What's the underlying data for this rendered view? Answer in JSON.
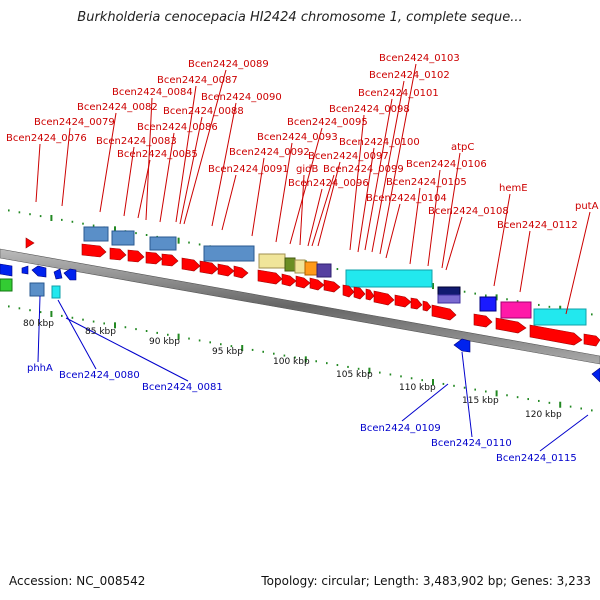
{
  "title": "Burkholderia cenocepacia HI2424 chromosome 1, complete seque...",
  "footer": {
    "accession": "Accession: NC_008542",
    "summary": "Topology: circular; Length: 3,483,902 bp; Genes: 3,233"
  },
  "colors": {
    "forward_label": "#cc0000",
    "reverse_label": "#0000cc",
    "backbone": "#888888",
    "tick": "#228822",
    "forward_arrow": "#ff0000",
    "reverse_arrow": "#0022ee"
  },
  "scale_labels": [
    "80 kbp",
    "85 kbp",
    "90 kbp",
    "95 kbp",
    "100 kbp",
    "105 kbp",
    "110 kbp",
    "115 kbp",
    "120 kbp"
  ],
  "forward_gene_labels": [
    "Bcen2424_0103",
    "Bcen2424_0102",
    "Bcen2424_0089",
    "Bcen2424_0101",
    "Bcen2424_0087",
    "Bcen2424_0084",
    "Bcen2424_0090",
    "Bcen2424_0098",
    "Bcen2424_0082",
    "Bcen2424_0088",
    "Bcen2424_0079",
    "Bcen2424_0095",
    "Bcen2424_0086",
    "Bcen2424_0076",
    "Bcen2424_0083",
    "Bcen2424_0093",
    "Bcen2424_0100",
    "atpC",
    "Bcen2424_0085",
    "Bcen2424_0092",
    "Bcen2424_0097",
    "gidB",
    "Bcen2424_0099",
    "Bcen2424_0106",
    "Bcen2424_0091",
    "Bcen2424_0096",
    "Bcen2424_0105",
    "hemE",
    "Bcen2424_0104",
    "putA",
    "Bcen2424_0108",
    "Bcen2424_0112"
  ],
  "reverse_gene_labels": [
    "phhA",
    "Bcen2424_0080",
    "Bcen2424_0081",
    "Bcen2424_0109",
    "Bcen2424_0110",
    "Bcen2424_0115"
  ]
}
